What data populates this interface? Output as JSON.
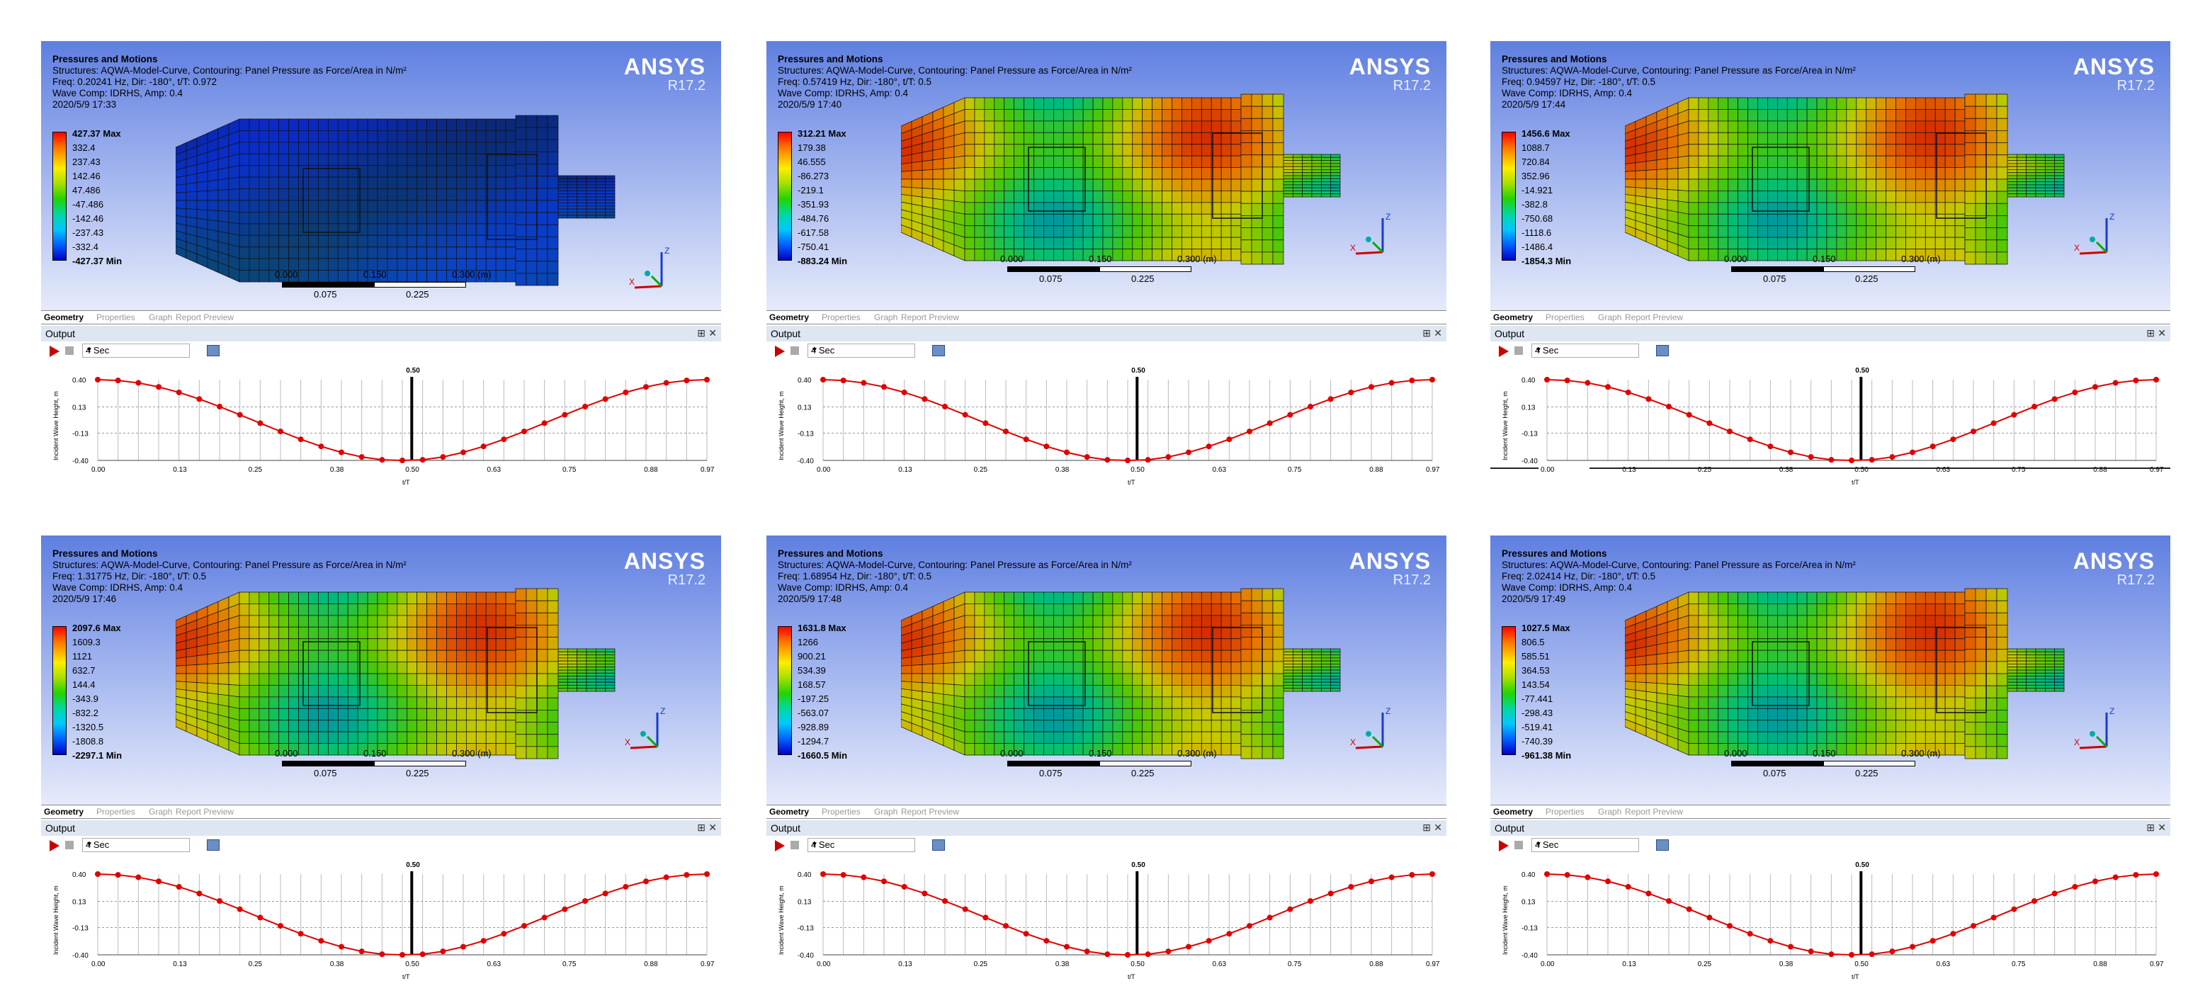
{
  "app": {
    "logo": "ANSYS",
    "version": "R17.2",
    "tabs": [
      "Geometry",
      "Properties",
      "Graph",
      "Report Preview"
    ],
    "output_label": "Output",
    "pin_icon": "pin-icon",
    "close_icon": "close-icon",
    "speed_value": "4 Sec"
  },
  "panels": [
    {
      "title": "Pressures and Motions",
      "structures": "Structures: AQWA-Model-Curve, Contouring: Panel Pressure as Force/Area in N/m²",
      "freq": "Freq: 0.20241 Hz, Dir: -180°, t/T: 0.972",
      "wave": "Wave Comp: IDRHS, Amp: 0.4",
      "date": "2020/5/9 17:33",
      "legend": [
        "427.37 Max",
        "332.4",
        "237.43",
        "142.46",
        "47.486",
        "-47.486",
        "-142.46",
        "-237.43",
        "-332.4",
        "-427.37 Min"
      ],
      "marker_label": "0.50",
      "marker_pos": 0.5,
      "scale": [
        "0.000",
        "0.150",
        "0.300 (m)",
        "0.075",
        "0.225"
      ],
      "colormap": "blue"
    },
    {
      "title": "Pressures and Motions",
      "structures": "Structures: AQWA-Model-Curve, Contouring: Panel Pressure as Force/Area in N/m²",
      "freq": "Freq: 0.57419 Hz, Dir: -180°, t/T: 0.5",
      "wave": "Wave Comp: IDRHS, Amp: 0.4",
      "date": "2020/5/9 17:40",
      "legend": [
        "312.21 Max",
        "179.38",
        "46.555",
        "-86.273",
        "-219.1",
        "-351.93",
        "-484.76",
        "-617.58",
        "-750.41",
        "-883.24 Min"
      ],
      "marker_label": "0.50",
      "marker_pos": 0.5,
      "scale": [
        "0.000",
        "0.150",
        "0.300 (m)",
        "0.075",
        "0.225"
      ],
      "colormap": "mixed"
    },
    {
      "title": "Pressures and Motions",
      "structures": "Structures: AQWA-Model-Curve, Contouring: Panel Pressure as Force/Area in N/m²",
      "freq": "Freq: 0.94597 Hz, Dir: -180°, t/T: 0.5",
      "wave": "Wave Comp: IDRHS, Amp: 0.4",
      "date": "2020/5/9 17:44",
      "legend": [
        "1456.6 Max",
        "1088.7",
        "720.84",
        "352.96",
        "-14.921",
        "-382.8",
        "-750.68",
        "-1118.6",
        "-1486.4",
        "-1854.3 Min"
      ],
      "marker_label": "0.50",
      "marker_pos": 0.5,
      "scale": [
        "0.000",
        "0.150",
        "0.300 (m)",
        "0.075",
        "0.225"
      ],
      "colormap": "mixed"
    },
    {
      "title": "Pressures and Motions",
      "structures": "Structures: AQWA-Model-Curve, Contouring: Panel Pressure as Force/Area in N/m²",
      "freq": "Freq: 1.31775 Hz, Dir: -180°, t/T: 0.5",
      "wave": "Wave Comp: IDRHS, Amp: 0.4",
      "date": "2020/5/9 17:46",
      "legend": [
        "2097.6 Max",
        "1609.3",
        "1121",
        "632.7",
        "144.4",
        "-343.9",
        "-832.2",
        "-1320.5",
        "-1808.8",
        "-2297.1 Min"
      ],
      "marker_label": "0.50",
      "marker_pos": 0.5,
      "scale": [
        "0.000",
        "0.150",
        "0.300 (m)",
        "0.075",
        "0.225"
      ],
      "colormap": "mixed"
    },
    {
      "title": "Pressures and Motions",
      "structures": "Structures: AQWA-Model-Curve, Contouring: Panel Pressure as Force/Area in N/m²",
      "freq": "Freq: 1.68954 Hz, Dir: -180°, t/T: 0.5",
      "wave": "Wave Comp: IDRHS, Amp: 0.4",
      "date": "2020/5/9 17:48",
      "legend": [
        "1631.8 Max",
        "1266",
        "900.21",
        "534.39",
        "168.57",
        "-197.25",
        "-563.07",
        "-928.89",
        "-1294.7",
        "-1660.5 Min"
      ],
      "marker_label": "0.50",
      "marker_pos": 0.5,
      "scale": [
        "0.000",
        "0.150",
        "0.300 (m)",
        "0.075",
        "0.225"
      ],
      "colormap": "mixed"
    },
    {
      "title": "Pressures and Motions",
      "structures": "Structures: AQWA-Model-Curve, Contouring: Panel Pressure as Force/Area in N/m²",
      "freq": "Freq: 2.02414 Hz, Dir: -180°, t/T: 0.5",
      "wave": "Wave Comp: IDRHS, Amp: 0.4",
      "date": "2020/5/9 17:49",
      "legend": [
        "1027.5 Max",
        "806.5",
        "585.51",
        "364.53",
        "143.54",
        "-77.441",
        "-298.43",
        "-519.41",
        "-740.39",
        "-961.38 Min"
      ],
      "marker_label": "0.50",
      "marker_pos": 0.5,
      "scale": [
        "0.000",
        "0.150",
        "0.300 (m)",
        "0.075",
        "0.225"
      ],
      "colormap": "mixed"
    }
  ],
  "chart_data": {
    "type": "line",
    "xlabel": "t/T",
    "ylabel": "Incident Wave Height, m",
    "x_ticks": [
      "0.00",
      "0.13",
      "0.25",
      "0.38",
      "0.50",
      "0.63",
      "0.75",
      "0.88",
      "0.97"
    ],
    "y_ticks": [
      "0.40",
      "0.13",
      "-0.13",
      "-0.40"
    ],
    "ylim": [
      -0.4,
      0.4
    ],
    "xlim": [
      0.0,
      0.97
    ],
    "series": [
      {
        "color": "#e00000",
        "x": [
          0.0,
          0.0323,
          0.0647,
          0.097,
          0.1293,
          0.1617,
          0.194,
          0.2263,
          0.2587,
          0.291,
          0.3233,
          0.3557,
          0.388,
          0.4203,
          0.4527,
          0.485,
          0.5173,
          0.5497,
          0.582,
          0.6143,
          0.6467,
          0.679,
          0.7113,
          0.7437,
          0.776,
          0.8083,
          0.8407,
          0.873,
          0.9053,
          0.9377,
          0.97
        ],
        "y": [
          0.4,
          0.392,
          0.368,
          0.328,
          0.274,
          0.208,
          0.133,
          0.052,
          -0.031,
          -0.113,
          -0.191,
          -0.261,
          -0.32,
          -0.366,
          -0.394,
          -0.4,
          -0.394,
          -0.366,
          -0.32,
          -0.261,
          -0.191,
          -0.113,
          -0.031,
          0.052,
          0.133,
          0.208,
          0.274,
          0.328,
          0.368,
          0.392,
          0.4
        ]
      }
    ]
  }
}
